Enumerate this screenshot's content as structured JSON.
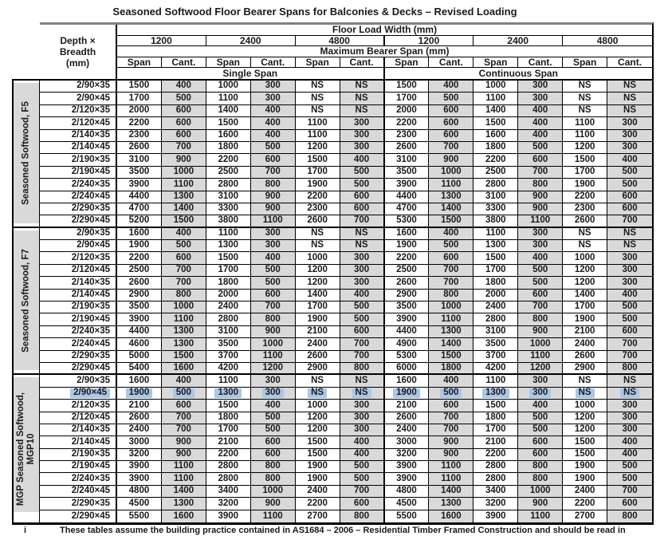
{
  "title": "Seasoned Softwood Floor Bearer Spans for Balconies & Decks – Revised Loading",
  "header": {
    "row_header_lines": [
      "Depth ×",
      "Breadth",
      "(mm)"
    ],
    "floor_load_width": "Floor Load Width (mm)",
    "max_bearer_span": "Maximum Bearer Span (mm)",
    "load_widths": [
      "1200",
      "2400",
      "4800",
      "1200",
      "2400",
      "4800"
    ],
    "span_cant": [
      "Span",
      "Cant.",
      "Span",
      "Cant.",
      "Span",
      "Cant.",
      "Span",
      "Cant.",
      "Span",
      "Cant.",
      "Span",
      "Cant."
    ],
    "span_types": [
      "Single Span",
      "Continuous Span"
    ]
  },
  "groups": [
    {
      "label_lines": [
        "Seasoned Softwood, F5"
      ],
      "rows": [
        {
          "size": "2/90×35",
          "values": [
            "1500",
            "400",
            "1000",
            "300",
            "NS",
            "NS",
            "1500",
            "400",
            "1000",
            "300",
            "NS",
            "NS"
          ]
        },
        {
          "size": "2/90×45",
          "values": [
            "1700",
            "500",
            "1100",
            "300",
            "NS",
            "NS",
            "1700",
            "500",
            "1100",
            "300",
            "NS",
            "NS"
          ]
        },
        {
          "size": "2/120×35",
          "values": [
            "2000",
            "600",
            "1400",
            "400",
            "NS",
            "NS",
            "2000",
            "600",
            "1400",
            "400",
            "NS",
            "NS"
          ]
        },
        {
          "size": "2/120×45",
          "values": [
            "2200",
            "600",
            "1500",
            "400",
            "1100",
            "300",
            "2200",
            "600",
            "1500",
            "400",
            "1100",
            "300"
          ]
        },
        {
          "size": "2/140×35",
          "values": [
            "2300",
            "600",
            "1600",
            "400",
            "1100",
            "300",
            "2300",
            "600",
            "1600",
            "400",
            "1100",
            "300"
          ]
        },
        {
          "size": "2/140×45",
          "values": [
            "2600",
            "700",
            "1800",
            "500",
            "1200",
            "300",
            "2600",
            "700",
            "1800",
            "500",
            "1200",
            "300"
          ]
        },
        {
          "size": "2/190×35",
          "values": [
            "3100",
            "900",
            "2200",
            "600",
            "1500",
            "400",
            "3100",
            "900",
            "2200",
            "600",
            "1500",
            "400"
          ]
        },
        {
          "size": "2/190×45",
          "values": [
            "3500",
            "1000",
            "2500",
            "700",
            "1700",
            "500",
            "3500",
            "1000",
            "2500",
            "700",
            "1700",
            "500"
          ]
        },
        {
          "size": "2/240×35",
          "values": [
            "3900",
            "1100",
            "2800",
            "800",
            "1900",
            "500",
            "3900",
            "1100",
            "2800",
            "800",
            "1900",
            "500"
          ]
        },
        {
          "size": "2/240×45",
          "values": [
            "4400",
            "1300",
            "3100",
            "900",
            "2200",
            "600",
            "4400",
            "1300",
            "3100",
            "900",
            "2200",
            "600"
          ]
        },
        {
          "size": "2/290×35",
          "values": [
            "4700",
            "1400",
            "3300",
            "900",
            "2300",
            "600",
            "4700",
            "1400",
            "3300",
            "900",
            "2300",
            "600"
          ]
        },
        {
          "size": "2/290×45",
          "values": [
            "5200",
            "1500",
            "3800",
            "1100",
            "2600",
            "700",
            "5300",
            "1500",
            "3800",
            "1100",
            "2600",
            "700"
          ]
        }
      ]
    },
    {
      "label_lines": [
        "Seasoned Softwood, F7"
      ],
      "rows": [
        {
          "size": "2/90×35",
          "values": [
            "1600",
            "400",
            "1100",
            "300",
            "NS",
            "NS",
            "1600",
            "400",
            "1100",
            "300",
            "NS",
            "NS"
          ]
        },
        {
          "size": "2/90×45",
          "values": [
            "1900",
            "500",
            "1300",
            "300",
            "NS",
            "NS",
            "1900",
            "500",
            "1300",
            "300",
            "NS",
            "NS"
          ]
        },
        {
          "size": "2/120×35",
          "values": [
            "2200",
            "600",
            "1500",
            "400",
            "1000",
            "300",
            "2200",
            "600",
            "1500",
            "400",
            "1000",
            "300"
          ]
        },
        {
          "size": "2/120×45",
          "values": [
            "2500",
            "700",
            "1700",
            "500",
            "1200",
            "300",
            "2500",
            "700",
            "1700",
            "500",
            "1200",
            "300"
          ]
        },
        {
          "size": "2/140×35",
          "values": [
            "2600",
            "700",
            "1800",
            "500",
            "1200",
            "300",
            "2600",
            "700",
            "1800",
            "500",
            "1200",
            "300"
          ]
        },
        {
          "size": "2/140×45",
          "values": [
            "2900",
            "800",
            "2000",
            "600",
            "1400",
            "400",
            "2900",
            "800",
            "2000",
            "600",
            "1400",
            "400"
          ]
        },
        {
          "size": "2/190×35",
          "values": [
            "3500",
            "1000",
            "2400",
            "700",
            "1700",
            "500",
            "3500",
            "1000",
            "2400",
            "700",
            "1700",
            "500"
          ]
        },
        {
          "size": "2/190×45",
          "values": [
            "3900",
            "1100",
            "2800",
            "800",
            "1900",
            "500",
            "3900",
            "1100",
            "2800",
            "800",
            "1900",
            "500"
          ]
        },
        {
          "size": "2/240×35",
          "values": [
            "4400",
            "1300",
            "3100",
            "900",
            "2100",
            "600",
            "4400",
            "1300",
            "3100",
            "900",
            "2100",
            "600"
          ]
        },
        {
          "size": "2/240×45",
          "values": [
            "4600",
            "1300",
            "3500",
            "1000",
            "2400",
            "700",
            "4900",
            "1400",
            "3500",
            "1000",
            "2400",
            "700"
          ]
        },
        {
          "size": "2/290×35",
          "values": [
            "5000",
            "1500",
            "3700",
            "1100",
            "2600",
            "700",
            "5300",
            "1500",
            "3700",
            "1100",
            "2600",
            "700"
          ]
        },
        {
          "size": "2/290×45",
          "values": [
            "5400",
            "1600",
            "4200",
            "1200",
            "2900",
            "800",
            "6000",
            "1800",
            "4200",
            "1200",
            "2900",
            "800"
          ]
        }
      ]
    },
    {
      "label_lines": [
        "MGP Seasoned Softwood,",
        "MGP10"
      ],
      "rows": [
        {
          "size": "2/90×35",
          "values": [
            "1600",
            "400",
            "1100",
            "300",
            "NS",
            "NS",
            "1600",
            "400",
            "1100",
            "300",
            "NS",
            "NS"
          ]
        },
        {
          "size": "2/90×45",
          "values": [
            "1900",
            "500",
            "1300",
            "300",
            "NS",
            "NS",
            "1900",
            "500",
            "1300",
            "300",
            "NS",
            "NS"
          ],
          "highlight": true
        },
        {
          "size": "2/120×35",
          "values": [
            "2100",
            "600",
            "1500",
            "400",
            "1000",
            "300",
            "2100",
            "600",
            "1500",
            "400",
            "1000",
            "300"
          ]
        },
        {
          "size": "2/120×45",
          "values": [
            "2600",
            "700",
            "1800",
            "500",
            "1200",
            "300",
            "2600",
            "700",
            "1800",
            "500",
            "1200",
            "300"
          ]
        },
        {
          "size": "2/140×35",
          "values": [
            "2400",
            "700",
            "1700",
            "500",
            "1200",
            "300",
            "2400",
            "700",
            "1700",
            "500",
            "1200",
            "300"
          ]
        },
        {
          "size": "2/140×45",
          "values": [
            "3000",
            "900",
            "2100",
            "600",
            "1500",
            "400",
            "3000",
            "900",
            "2100",
            "600",
            "1500",
            "400"
          ]
        },
        {
          "size": "2/190×35",
          "values": [
            "3200",
            "900",
            "2200",
            "600",
            "1500",
            "400",
            "3200",
            "900",
            "2200",
            "600",
            "1500",
            "400"
          ]
        },
        {
          "size": "2/190×45",
          "values": [
            "3900",
            "1100",
            "2800",
            "800",
            "1900",
            "500",
            "3900",
            "1100",
            "2800",
            "800",
            "1900",
            "500"
          ]
        },
        {
          "size": "2/240×35",
          "values": [
            "3900",
            "1100",
            "2800",
            "800",
            "1900",
            "500",
            "3900",
            "1100",
            "2800",
            "800",
            "1900",
            "500"
          ]
        },
        {
          "size": "2/240×45",
          "values": [
            "4800",
            "1400",
            "3400",
            "1000",
            "2400",
            "700",
            "4800",
            "1400",
            "3400",
            "1000",
            "2400",
            "700"
          ]
        },
        {
          "size": "2/290×35",
          "values": [
            "4500",
            "1300",
            "3200",
            "900",
            "2200",
            "600",
            "4500",
            "1300",
            "3200",
            "900",
            "2200",
            "600"
          ]
        },
        {
          "size": "2/290×45",
          "values": [
            "5500",
            "1600",
            "3900",
            "1100",
            "2700",
            "800",
            "5500",
            "1600",
            "3900",
            "1100",
            "2700",
            "800"
          ]
        }
      ]
    }
  ],
  "footnote": {
    "marker": "i",
    "text": "These tables assume the building practice contained in AS1684 – 2006 – Residential Timber Framed Construction and should be read in"
  },
  "colors": {
    "cant_shade": "#d9d9d9",
    "selection": "#a9c7e8",
    "top_rule": "#808080",
    "border": "#000000",
    "text": "#1a1a1a"
  }
}
